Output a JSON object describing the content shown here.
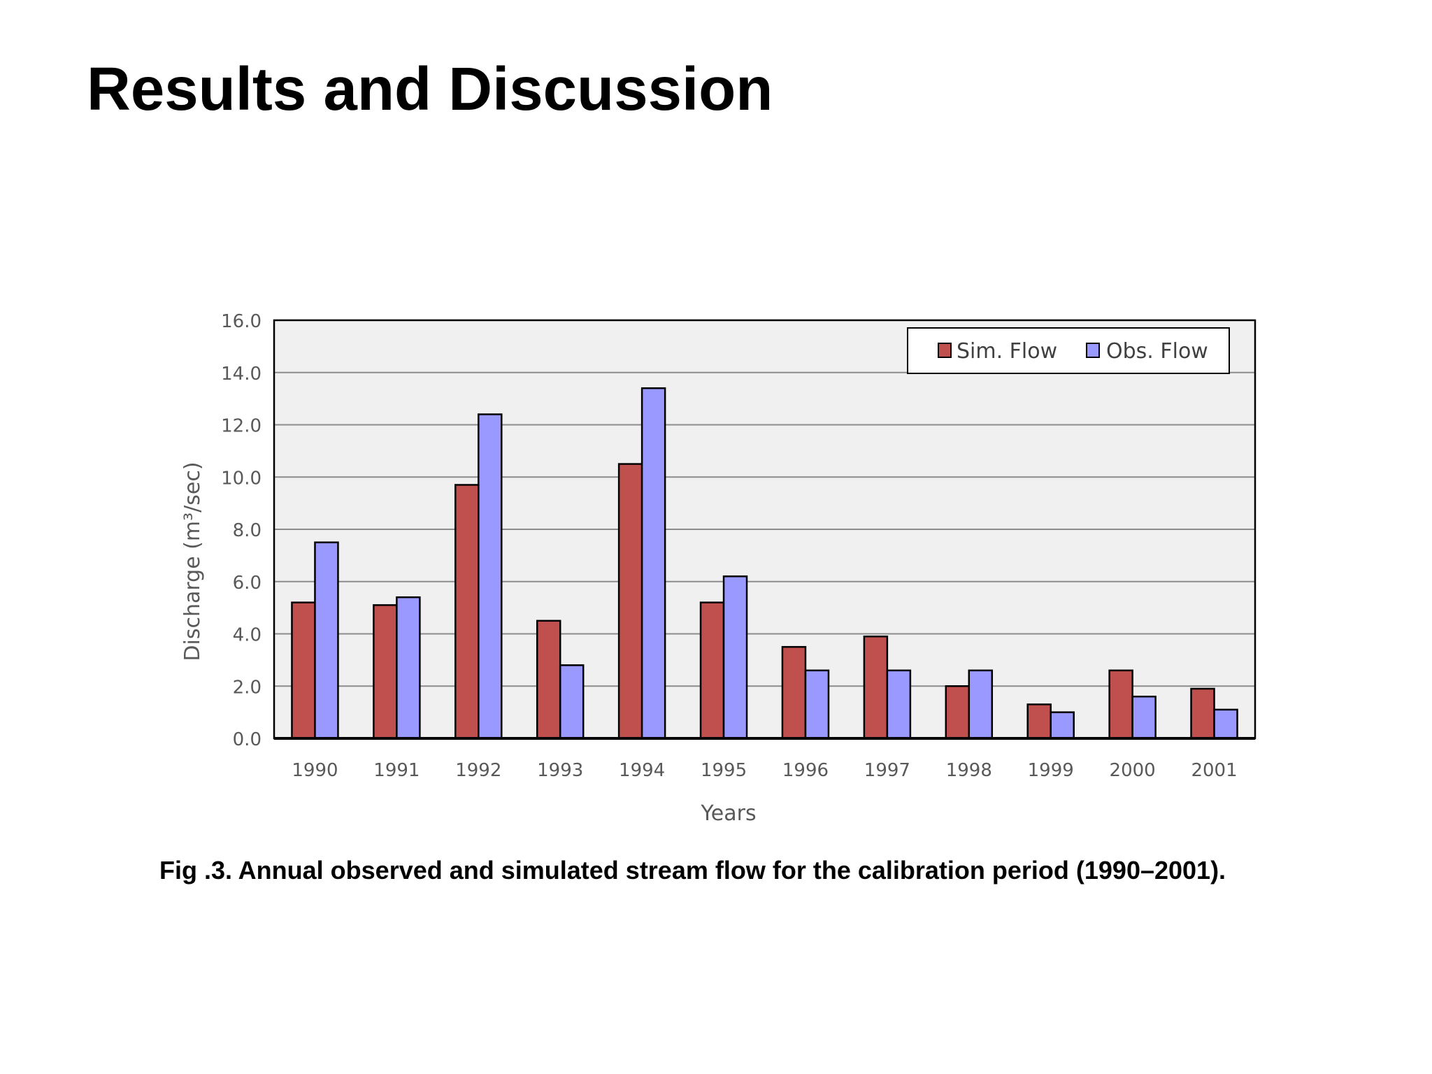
{
  "slide": {
    "title": "Results and Discussion",
    "caption": "Fig .3. Annual observed and simulated stream flow for the calibration period (1990–2001)."
  },
  "chart_data": {
    "type": "bar",
    "title": "",
    "xlabel": "Years",
    "ylabel": "Discharge (m³/sec)",
    "ylim": [
      0,
      16
    ],
    "y_ticks": [
      "0.0",
      "2.0",
      "4.0",
      "6.0",
      "8.0",
      "10.0",
      "12.0",
      "14.0",
      "16.0"
    ],
    "grid": true,
    "legend_position": "top-right",
    "categories": [
      "1990",
      "1991",
      "1992",
      "1993",
      "1994",
      "1995",
      "1996",
      "1997",
      "1998",
      "1999",
      "2000",
      "2001"
    ],
    "series": [
      {
        "name": "Sim. Flow",
        "color": "#c0504d",
        "values": [
          5.2,
          5.1,
          9.7,
          4.5,
          10.5,
          5.2,
          3.5,
          3.9,
          2.0,
          1.3,
          2.6,
          1.9
        ]
      },
      {
        "name": "Obs. Flow",
        "color": "#9999ff",
        "values": [
          7.5,
          5.4,
          12.4,
          2.8,
          13.4,
          6.2,
          2.6,
          2.6,
          2.6,
          1.0,
          1.6,
          1.1
        ]
      }
    ],
    "colors": {
      "plot_background": "#f0f0f0",
      "gridline": "#8c8c8c",
      "axis_text": "#595959",
      "border": "#000000"
    }
  }
}
